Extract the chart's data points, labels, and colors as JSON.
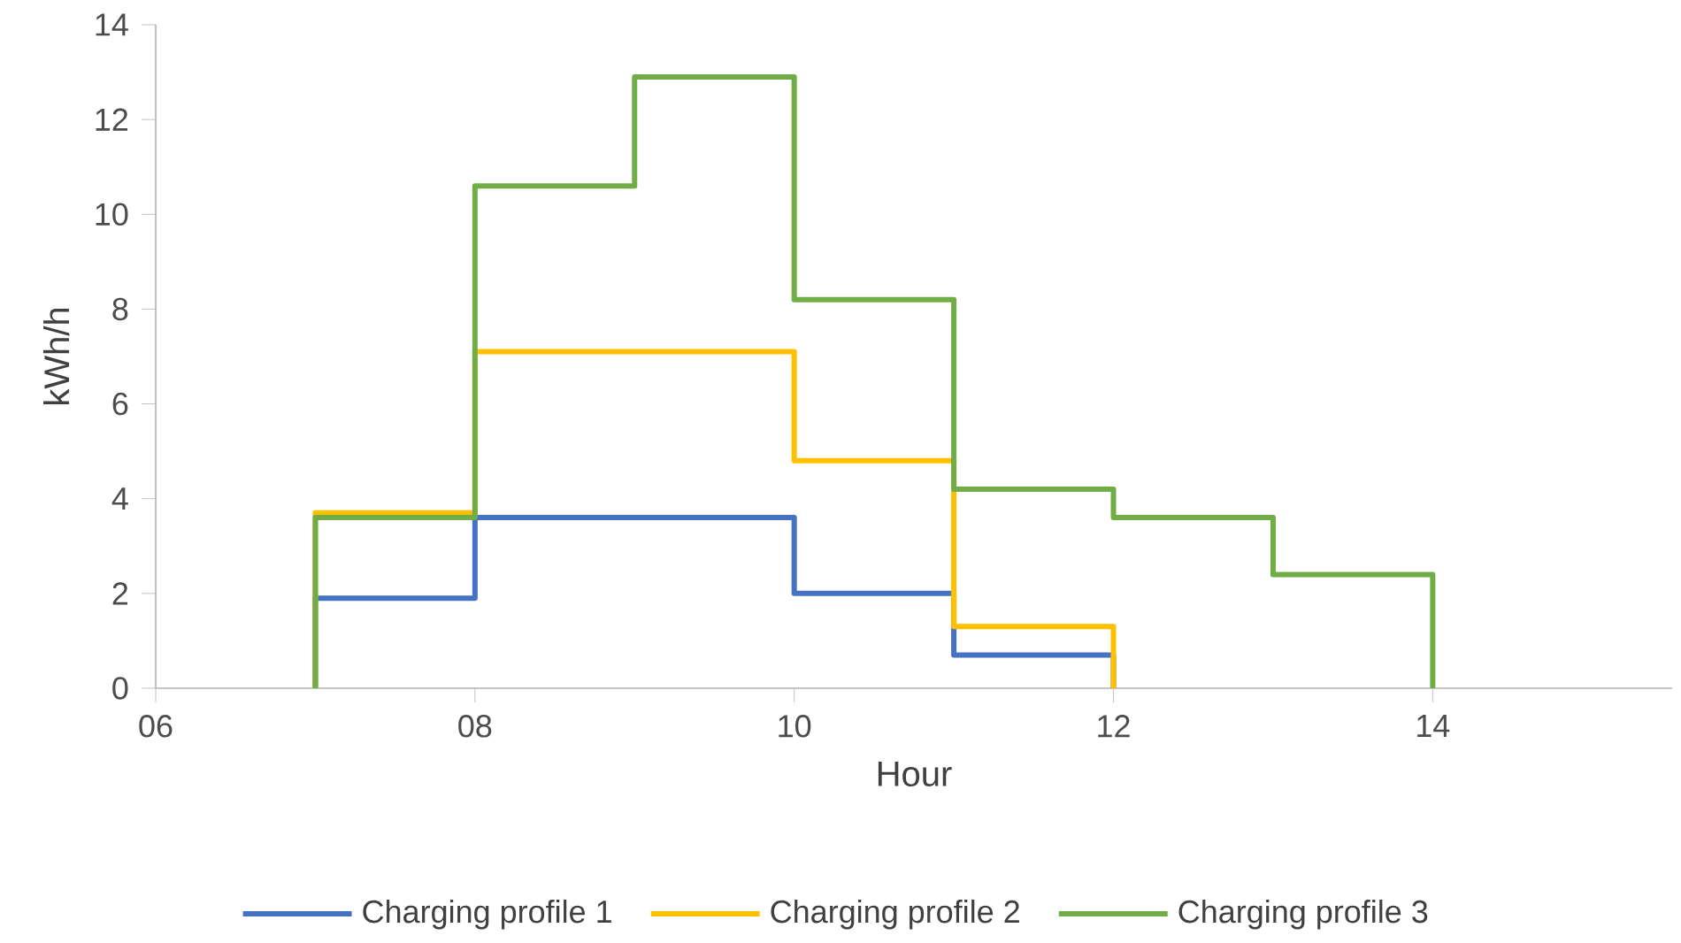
{
  "chart_data": {
    "type": "step",
    "xlabel": "Hour",
    "ylabel": "kWh/h",
    "xlim": [
      6,
      15.5
    ],
    "ylim": [
      0,
      14
    ],
    "xticks": [
      {
        "value": 6,
        "label": "06"
      },
      {
        "value": 8,
        "label": "08"
      },
      {
        "value": 10,
        "label": "10"
      },
      {
        "value": 12,
        "label": "12"
      },
      {
        "value": 14,
        "label": "14"
      }
    ],
    "yticks": [
      0,
      2,
      4,
      6,
      8,
      10,
      12,
      14
    ],
    "grid": false,
    "legend": "bottom",
    "series": [
      {
        "name": "Charging profile 1",
        "color": "#4472c4",
        "x": [
          7,
          7,
          8,
          10,
          11,
          12
        ],
        "values": [
          0,
          1.9,
          3.6,
          2.0,
          0.7,
          0
        ]
      },
      {
        "name": "Charging profile 2",
        "color": "#ffc000",
        "x": [
          7,
          7,
          8,
          10,
          11,
          12
        ],
        "values": [
          0,
          3.7,
          7.1,
          4.8,
          1.3,
          0
        ]
      },
      {
        "name": "Charging profile 3",
        "color": "#70ad47",
        "x": [
          7,
          7,
          8,
          9,
          10,
          11,
          12,
          13,
          14
        ],
        "values": [
          0,
          3.6,
          10.6,
          12.9,
          8.2,
          4.2,
          3.6,
          2.4,
          0
        ]
      }
    ]
  }
}
